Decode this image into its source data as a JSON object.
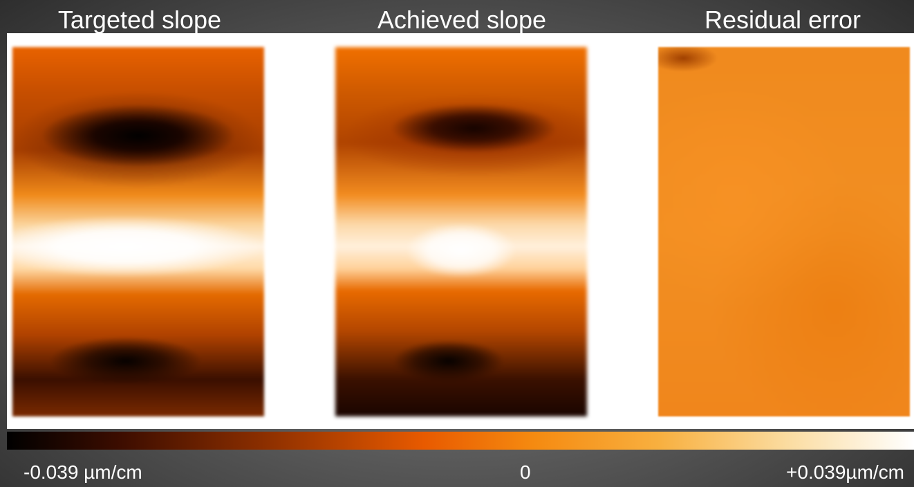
{
  "panels": [
    {
      "title": "Targeted slope"
    },
    {
      "title": "Achieved slope"
    },
    {
      "title": "Residual error"
    }
  ],
  "colorbar": {
    "labels": [
      "-0.039 µm/cm",
      "0",
      "+0.039µm/cm"
    ]
  }
}
